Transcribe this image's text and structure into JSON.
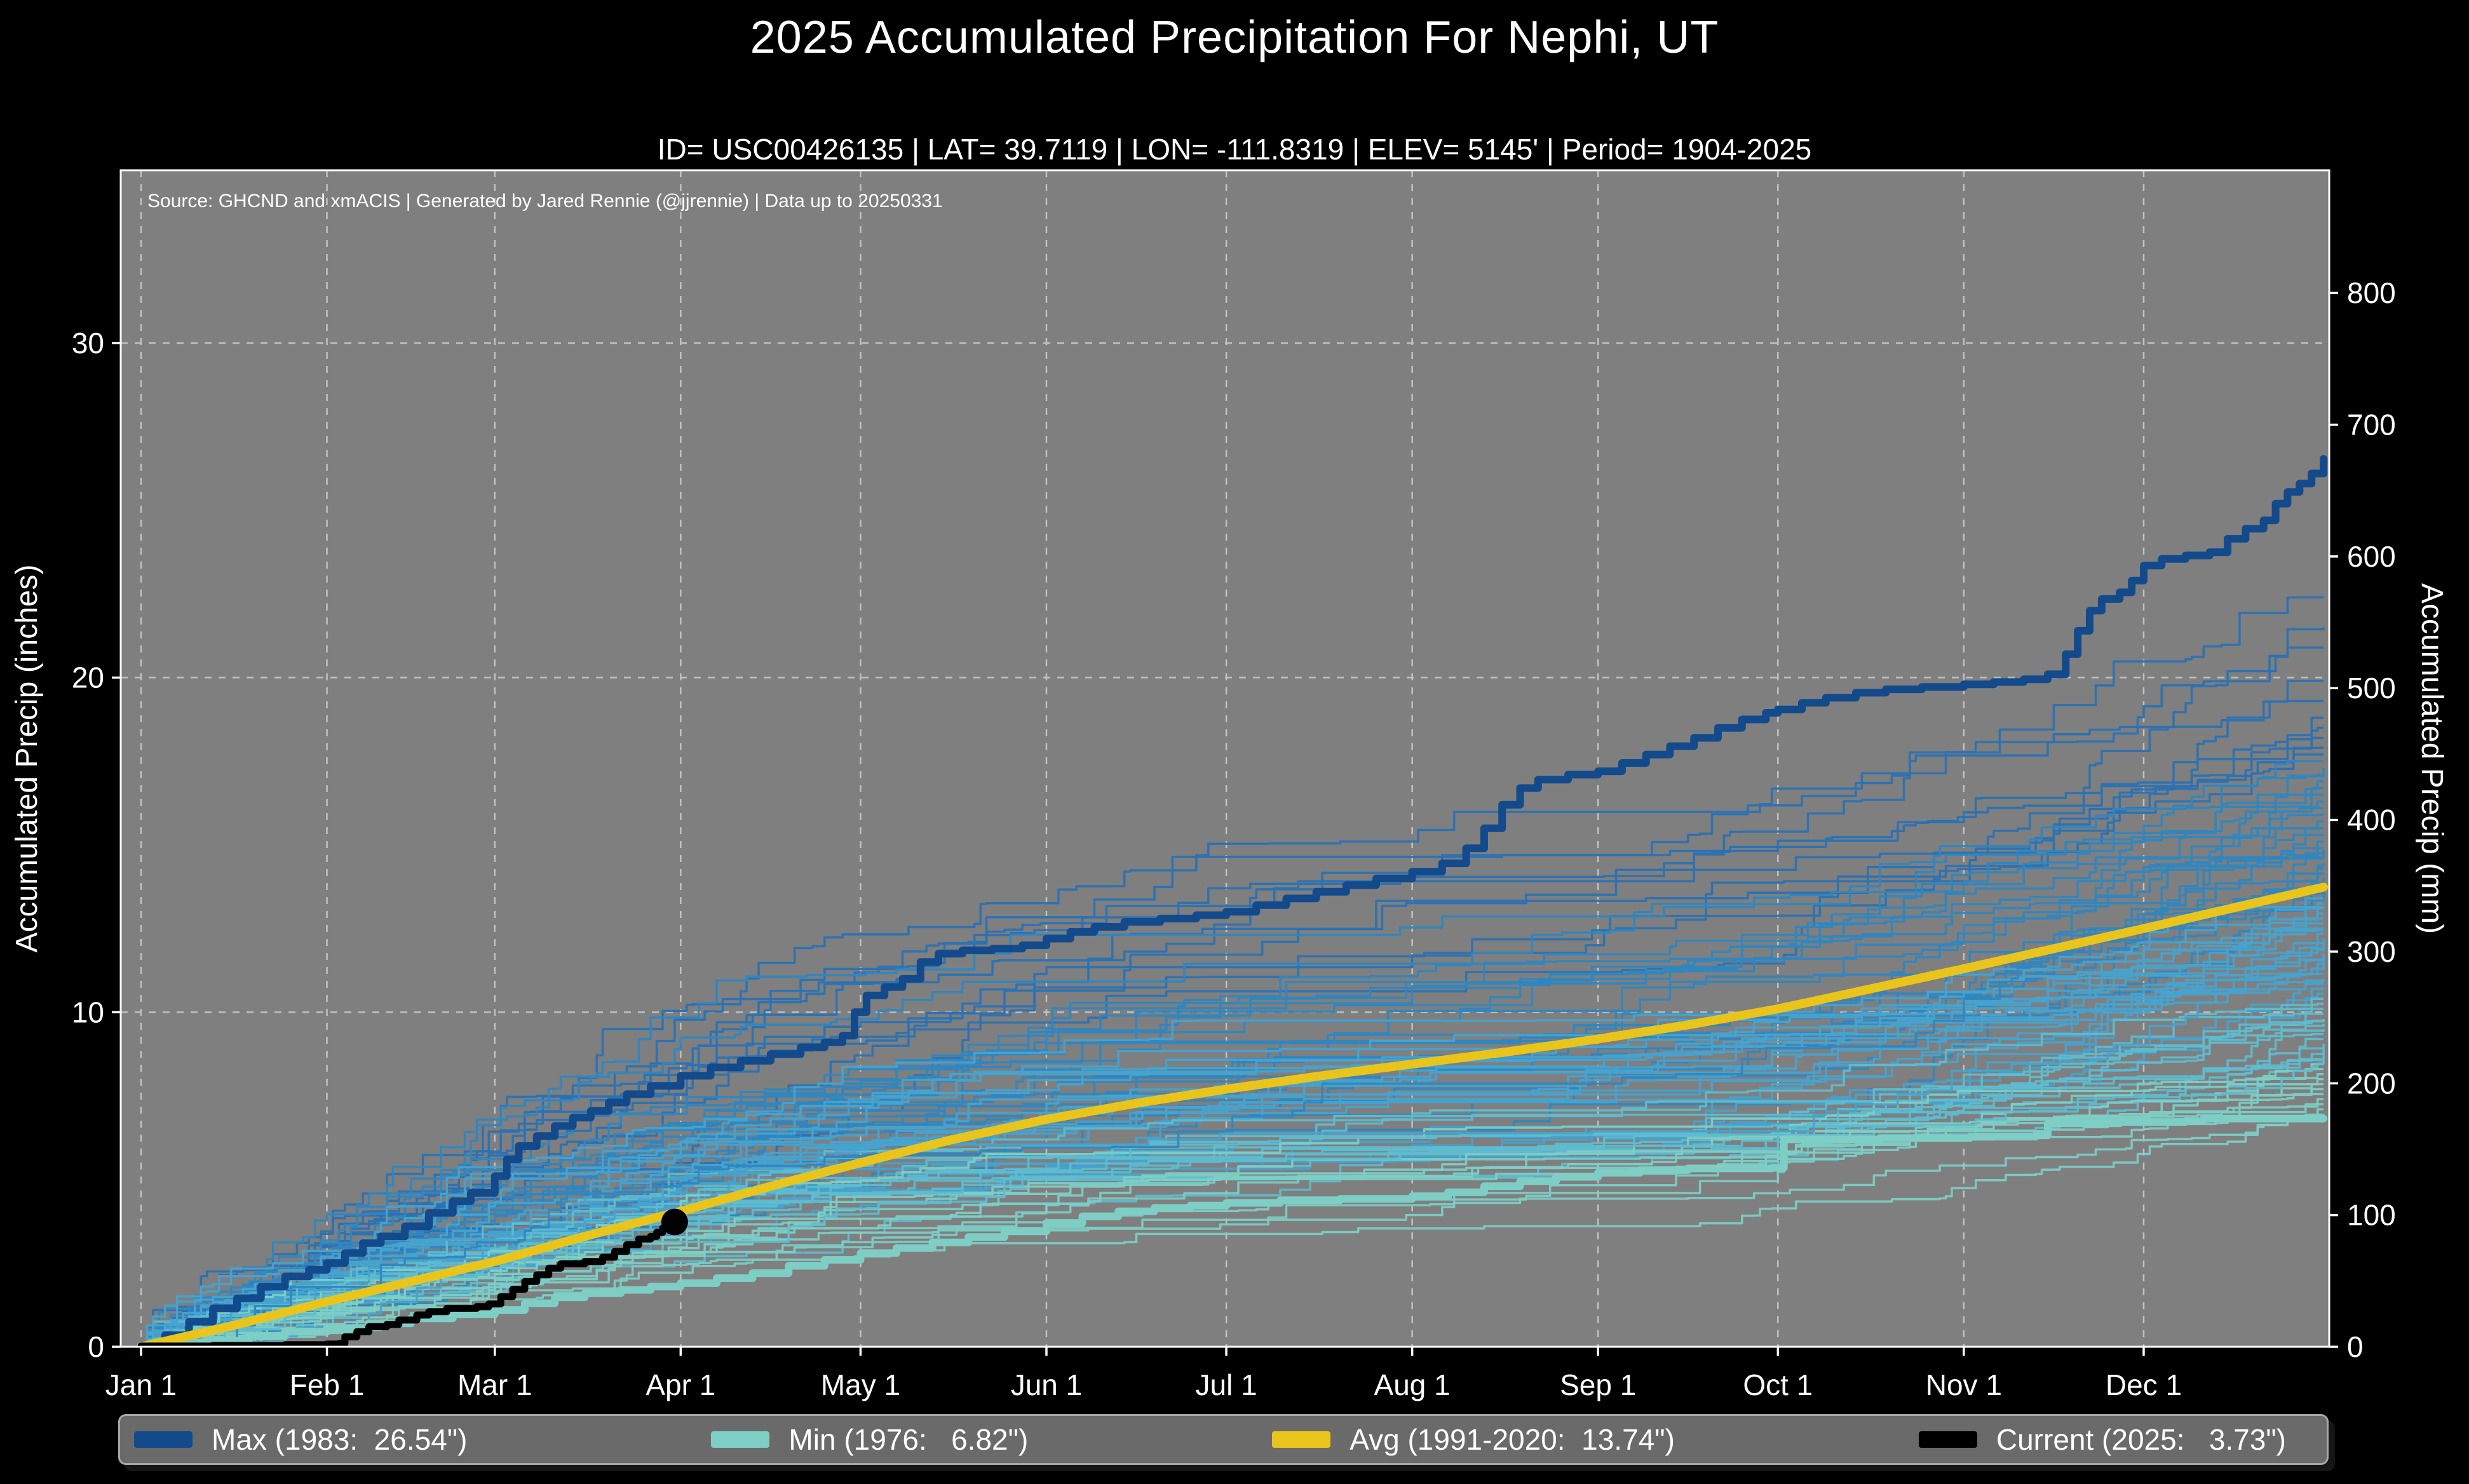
{
  "header": {
    "title": "2025 Accumulated Precipitation For Nephi, UT",
    "subtitle": "ID= USC00426135 | LAT= 39.7119 | LON= -111.8319 | ELEV= 5145' | Period= 1904-2025"
  },
  "chart_data": {
    "type": "line",
    "title": "2025 Accumulated Precipitation For Nephi, UT",
    "source_note": "Source: GHCND and xmACIS | Generated by Jared Rennie (@jjrennie) | Data up to 20250331",
    "plot_bg": "#7f7f7f",
    "gridline_color": "#c9c9c9",
    "spine_color": "#ffffff",
    "x_axis": {
      "tick_labels": [
        "Jan 1",
        "Feb 1",
        "Mar 1",
        "Apr 1",
        "May 1",
        "Jun 1",
        "Jul 1",
        "Aug 1",
        "Sep 1",
        "Oct 1",
        "Nov 1",
        "Dec 1"
      ],
      "tick_days": [
        0,
        31,
        59,
        90,
        120,
        151,
        181,
        212,
        243,
        273,
        304,
        334
      ],
      "range_days": [
        0,
        364
      ]
    },
    "y_axis_left": {
      "label": "Accumulated Precip (inches)",
      "ticks": [
        0,
        10,
        20,
        30
      ],
      "range": [
        0,
        35.2
      ],
      "gridlines_at": [
        10,
        20,
        30
      ]
    },
    "y_axis_right": {
      "label": "Accumulated Precip (mm)",
      "ticks": [
        0,
        100,
        200,
        300,
        400,
        500,
        600,
        700,
        800
      ]
    },
    "series": [
      {
        "name": "Max",
        "legend_label": "Max (1983:  26.54\")",
        "year": "1983",
        "total_inches": 26.54,
        "color": "#134a8c",
        "width": 12,
        "interp": "step",
        "points": [
          [
            0,
            0
          ],
          [
            4,
            0.35
          ],
          [
            8,
            0.75
          ],
          [
            12,
            1.15
          ],
          [
            16,
            1.45
          ],
          [
            20,
            1.8
          ],
          [
            24,
            2.1
          ],
          [
            28,
            2.3
          ],
          [
            31,
            2.5
          ],
          [
            34,
            2.8
          ],
          [
            37,
            3.1
          ],
          [
            40,
            3.3
          ],
          [
            44,
            3.6
          ],
          [
            48,
            4.0
          ],
          [
            52,
            4.35
          ],
          [
            55,
            4.6
          ],
          [
            59,
            5.1
          ],
          [
            61,
            5.6
          ],
          [
            63,
            6.0
          ],
          [
            66,
            6.3
          ],
          [
            69,
            6.6
          ],
          [
            72,
            6.85
          ],
          [
            75,
            7.05
          ],
          [
            78,
            7.3
          ],
          [
            81,
            7.55
          ],
          [
            85,
            7.8
          ],
          [
            90,
            8.1
          ],
          [
            95,
            8.35
          ],
          [
            100,
            8.55
          ],
          [
            105,
            8.75
          ],
          [
            110,
            8.95
          ],
          [
            114,
            9.1
          ],
          [
            117,
            9.3
          ],
          [
            119,
            10.0
          ],
          [
            121,
            10.5
          ],
          [
            124,
            10.75
          ],
          [
            127,
            11.0
          ],
          [
            130,
            11.5
          ],
          [
            133,
            11.75
          ],
          [
            137,
            11.85
          ],
          [
            142,
            11.9
          ],
          [
            147,
            12.0
          ],
          [
            151,
            12.2
          ],
          [
            155,
            12.4
          ],
          [
            159,
            12.55
          ],
          [
            164,
            12.7
          ],
          [
            170,
            12.8
          ],
          [
            176,
            12.9
          ],
          [
            181,
            13.0
          ],
          [
            186,
            13.2
          ],
          [
            191,
            13.4
          ],
          [
            196,
            13.6
          ],
          [
            201,
            13.8
          ],
          [
            206,
            14.0
          ],
          [
            212,
            14.2
          ],
          [
            217,
            14.45
          ],
          [
            221,
            14.9
          ],
          [
            224,
            15.5
          ],
          [
            227,
            16.2
          ],
          [
            230,
            16.7
          ],
          [
            233,
            16.95
          ],
          [
            238,
            17.1
          ],
          [
            243,
            17.2
          ],
          [
            247,
            17.45
          ],
          [
            251,
            17.7
          ],
          [
            255,
            17.95
          ],
          [
            259,
            18.2
          ],
          [
            263,
            18.5
          ],
          [
            267,
            18.75
          ],
          [
            271,
            18.95
          ],
          [
            273,
            19.05
          ],
          [
            277,
            19.25
          ],
          [
            281,
            19.4
          ],
          [
            286,
            19.55
          ],
          [
            291,
            19.65
          ],
          [
            297,
            19.72
          ],
          [
            304,
            19.8
          ],
          [
            309,
            19.87
          ],
          [
            314,
            19.95
          ],
          [
            318,
            20.1
          ],
          [
            321,
            20.7
          ],
          [
            323,
            21.4
          ],
          [
            325,
            22.0
          ],
          [
            327,
            22.35
          ],
          [
            330,
            22.55
          ],
          [
            332,
            22.9
          ],
          [
            334,
            23.35
          ],
          [
            337,
            23.55
          ],
          [
            341,
            23.65
          ],
          [
            345,
            23.75
          ],
          [
            348,
            24.15
          ],
          [
            351,
            24.45
          ],
          [
            354,
            24.7
          ],
          [
            356,
            25.2
          ],
          [
            358,
            25.55
          ],
          [
            360,
            25.8
          ],
          [
            362,
            26.1
          ],
          [
            364,
            26.54
          ]
        ]
      },
      {
        "name": "Min",
        "legend_label": "Min (1976:   6.82\")",
        "year": "1976",
        "total_inches": 6.82,
        "color": "#7ecec6",
        "width": 12,
        "interp": "step",
        "points": [
          [
            0,
            0
          ],
          [
            6,
            0.08
          ],
          [
            12,
            0.18
          ],
          [
            18,
            0.32
          ],
          [
            24,
            0.45
          ],
          [
            31,
            0.56
          ],
          [
            38,
            0.7
          ],
          [
            45,
            0.85
          ],
          [
            52,
            0.97
          ],
          [
            59,
            1.1
          ],
          [
            64,
            1.3
          ],
          [
            69,
            1.48
          ],
          [
            74,
            1.6
          ],
          [
            80,
            1.7
          ],
          [
            85,
            1.8
          ],
          [
            90,
            1.9
          ],
          [
            96,
            2.05
          ],
          [
            102,
            2.2
          ],
          [
            108,
            2.42
          ],
          [
            114,
            2.6
          ],
          [
            120,
            2.8
          ],
          [
            126,
            2.95
          ],
          [
            132,
            3.12
          ],
          [
            138,
            3.28
          ],
          [
            144,
            3.45
          ],
          [
            151,
            3.7
          ],
          [
            157,
            3.9
          ],
          [
            163,
            4.05
          ],
          [
            169,
            4.15
          ],
          [
            175,
            4.22
          ],
          [
            181,
            4.3
          ],
          [
            190,
            4.38
          ],
          [
            200,
            4.42
          ],
          [
            212,
            4.5
          ],
          [
            218,
            4.62
          ],
          [
            224,
            4.8
          ],
          [
            230,
            4.95
          ],
          [
            236,
            5.08
          ],
          [
            243,
            5.2
          ],
          [
            250,
            5.28
          ],
          [
            258,
            5.33
          ],
          [
            272,
            5.35
          ],
          [
            274,
            6.2
          ],
          [
            290,
            6.24
          ],
          [
            305,
            6.28
          ],
          [
            316,
            6.32
          ],
          [
            318,
            6.68
          ],
          [
            330,
            6.72
          ],
          [
            341,
            6.74
          ],
          [
            344,
            6.82
          ],
          [
            364,
            6.82
          ]
        ]
      },
      {
        "name": "Avg",
        "legend_label": "Avg (1991-2020:  13.74\")",
        "period": "1991-2020",
        "total_inches": 13.74,
        "color": "#e9c51c",
        "width": 14,
        "interp": "linear",
        "points": [
          [
            0,
            0
          ],
          [
            15,
            0.62
          ],
          [
            31,
            1.35
          ],
          [
            45,
            1.95
          ],
          [
            59,
            2.55
          ],
          [
            74,
            3.3
          ],
          [
            90,
            4.05
          ],
          [
            105,
            4.8
          ],
          [
            120,
            5.5
          ],
          [
            135,
            6.18
          ],
          [
            151,
            6.8
          ],
          [
            166,
            7.28
          ],
          [
            181,
            7.7
          ],
          [
            196,
            8.08
          ],
          [
            212,
            8.45
          ],
          [
            228,
            8.82
          ],
          [
            243,
            9.2
          ],
          [
            258,
            9.62
          ],
          [
            273,
            10.1
          ],
          [
            288,
            10.68
          ],
          [
            304,
            11.3
          ],
          [
            319,
            11.9
          ],
          [
            334,
            12.5
          ],
          [
            349,
            13.12
          ],
          [
            364,
            13.74
          ]
        ]
      },
      {
        "name": "Current",
        "legend_label": "Current (2025:   3.73\")",
        "year": "2025",
        "total_inches": 3.73,
        "color": "#000000",
        "width": 11,
        "interp": "step",
        "end_marker": {
          "day": 89,
          "value": 3.73,
          "radius": 21
        },
        "points": [
          [
            0,
            0.02
          ],
          [
            12,
            0.04
          ],
          [
            24,
            0.06
          ],
          [
            31,
            0.08
          ],
          [
            33,
            0.1
          ],
          [
            34,
            0.3
          ],
          [
            36,
            0.45
          ],
          [
            38,
            0.6
          ],
          [
            41,
            0.67
          ],
          [
            43,
            0.8
          ],
          [
            46,
            0.95
          ],
          [
            48,
            1.05
          ],
          [
            51,
            1.15
          ],
          [
            56,
            1.2
          ],
          [
            58,
            1.28
          ],
          [
            60,
            1.5
          ],
          [
            62,
            1.72
          ],
          [
            64,
            1.95
          ],
          [
            66,
            2.15
          ],
          [
            68,
            2.35
          ],
          [
            70,
            2.48
          ],
          [
            74,
            2.55
          ],
          [
            77,
            2.68
          ],
          [
            79,
            2.85
          ],
          [
            81,
            3.05
          ],
          [
            83,
            3.22
          ],
          [
            85,
            3.3
          ],
          [
            86,
            3.42
          ],
          [
            87,
            3.55
          ],
          [
            88,
            3.65
          ],
          [
            89,
            3.73
          ]
        ]
      }
    ],
    "background_years": {
      "description": "thin historical year traces 1904-2025, end-of-year totals in inches (approximate, read from plot)",
      "line_width": 3.5,
      "ends": [
        22.4,
        21.5,
        20.9,
        19.9,
        19.3,
        18.8,
        18.5,
        18.2,
        17.9,
        17.7,
        17.5,
        17.3,
        17.1,
        16.9,
        16.7,
        16.5,
        16.3,
        16.1,
        15.9,
        15.7,
        15.5,
        15.3,
        15.1,
        14.9,
        14.75,
        14.6,
        14.45,
        14.3,
        14.15,
        14.0,
        13.85,
        13.7,
        13.55,
        13.4,
        13.25,
        13.1,
        12.95,
        12.8,
        12.65,
        12.5,
        12.35,
        12.2,
        12.05,
        11.9,
        11.75,
        11.6,
        11.45,
        11.3,
        11.15,
        11.0,
        10.85,
        10.7,
        10.55,
        10.4,
        10.25,
        10.1,
        9.95,
        9.8,
        9.65,
        9.5,
        9.35,
        9.2,
        9.05,
        8.9,
        8.75,
        8.6,
        8.45,
        8.3,
        8.15,
        8.0,
        7.85,
        7.7,
        7.55,
        7.4,
        7.25,
        7.1,
        6.95,
        12.45,
        13.15,
        10.9,
        9.75,
        8.55,
        11.55,
        14.85
      ],
      "palette": [
        {
          "max": 8.5,
          "color": "#7dcdc5"
        },
        {
          "max": 10.5,
          "color": "#5fbccf"
        },
        {
          "max": 13.5,
          "color": "#47a3cf"
        },
        {
          "max": 17.5,
          "color": "#2f87c1"
        },
        {
          "max": 99,
          "color": "#2a72b5"
        }
      ]
    }
  },
  "legend": {
    "items": [
      {
        "label": "Max (1983:  26.54\")",
        "color": "#134a8c"
      },
      {
        "label": "Min (1976:   6.82\")",
        "color": "#7ecec6"
      },
      {
        "label": "Avg (1991-2020:  13.74\")",
        "color": "#e9c51c"
      },
      {
        "label": "Current (2025:   3.73\")",
        "color": "#000000"
      }
    ]
  }
}
